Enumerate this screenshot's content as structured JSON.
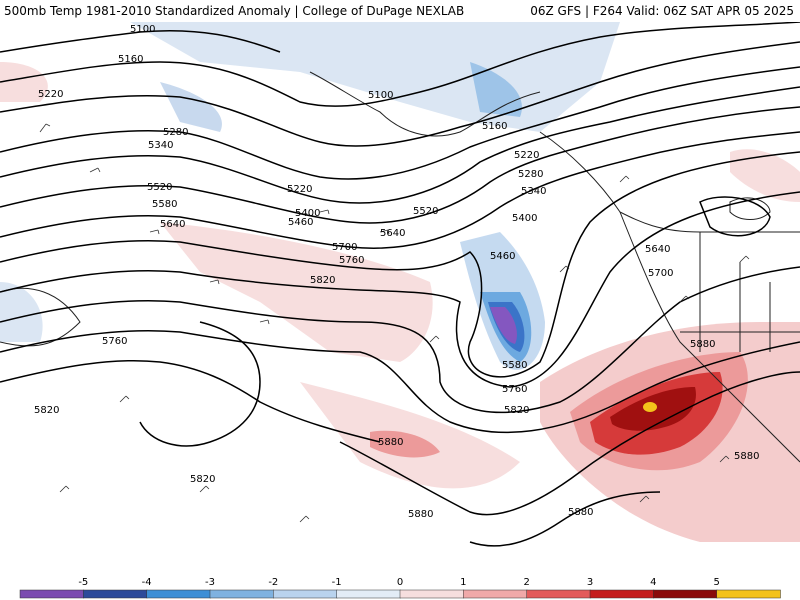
{
  "header": {
    "left": "500mb Temp 1981-2010 Standardized Anomaly | College of DuPage NEXLAB",
    "right": "06Z GFS | F264 Valid: 06Z SAT APR 05 2025"
  },
  "contour_labels": [
    "5100",
    "5160",
    "5220",
    "5280",
    "5340",
    "5400",
    "5460",
    "5520",
    "5580",
    "5640",
    "5700",
    "5760",
    "5820",
    "5880"
  ],
  "colorbar": {
    "ticks": [
      "-5",
      "-4",
      "-3",
      "-2",
      "-1",
      "0",
      "1",
      "2",
      "3",
      "4",
      "5"
    ],
    "colors": [
      "#7b4bb0",
      "#2c4a9a",
      "#3c8fd6",
      "#7fb2e0",
      "#b9d3ee",
      "#e3ecf6",
      "#f6dede",
      "#f0a9a9",
      "#e35b5b",
      "#c41c1c",
      "#8a0a0a",
      "#f3c21b"
    ]
  }
}
